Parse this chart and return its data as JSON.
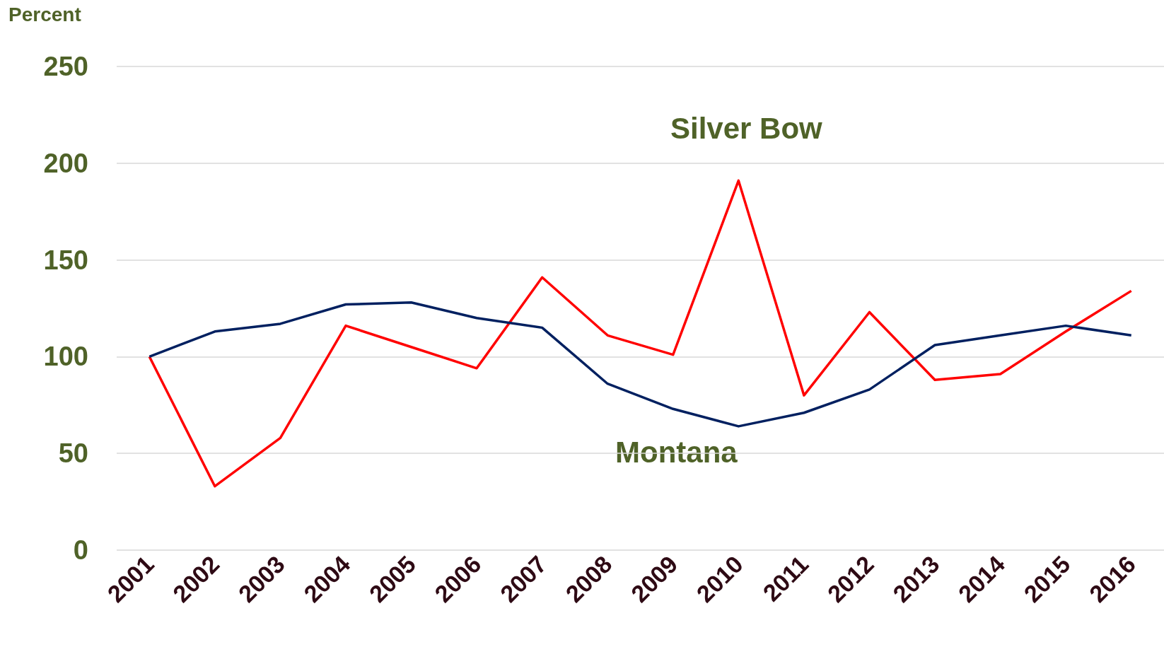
{
  "chart_data": {
    "type": "line",
    "ylabel": "Percent",
    "categories": [
      "2001",
      "2002",
      "2003",
      "2004",
      "2005",
      "2006",
      "2007",
      "2008",
      "2009",
      "2010",
      "2011",
      "2012",
      "2013",
      "2014",
      "2015",
      "2016"
    ],
    "series": [
      {
        "name": "Silver Bow",
        "color": "#ff0000",
        "values": [
          100,
          33,
          58,
          116,
          105,
          94,
          141,
          111,
          101,
          191,
          80,
          123,
          88,
          91,
          113,
          134
        ]
      },
      {
        "name": "Montana",
        "color": "#002060",
        "values": [
          100,
          113,
          117,
          127,
          128,
          120,
          115,
          86,
          73,
          64,
          71,
          83,
          106,
          111,
          116,
          111
        ]
      }
    ],
    "ylim": [
      0,
      250
    ],
    "yticks": [
      0,
      50,
      100,
      150,
      200,
      250
    ],
    "grid": "y",
    "legend": false,
    "marker": "none",
    "line_style": "solid"
  }
}
